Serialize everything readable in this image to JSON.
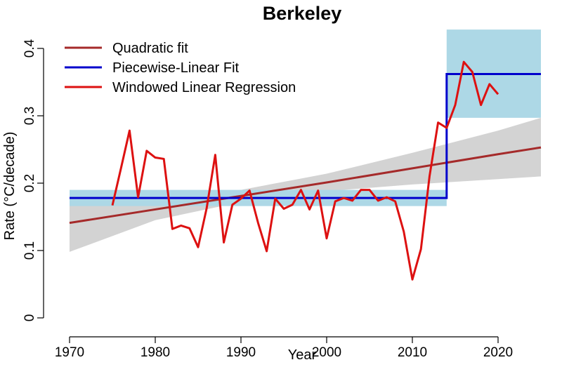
{
  "chart_data": {
    "type": "line",
    "title": "Berkeley",
    "xlabel": "Year",
    "ylabel": "Rate (°C/decade)",
    "xlim": [
      1967,
      2027
    ],
    "ylim": [
      0,
      0.42
    ],
    "xticks": [
      1970,
      1980,
      1990,
      2000,
      2010,
      2020
    ],
    "yticks": [
      0,
      0.1,
      0.2,
      0.3,
      0.4
    ],
    "ytick_labels": [
      "0",
      "0.1",
      "0.2",
      "0.3",
      "0.4"
    ],
    "grid": false,
    "legend_position": "top-left",
    "colors": {
      "quadratic": "#a52a2a",
      "piecewise": "#0000cc",
      "windowed": "#dd1111",
      "quad_band": "#d3d3d3",
      "piece_band": "#add8e6"
    },
    "series": [
      {
        "name": "Quadratic fit",
        "x": [
          1970,
          1980,
          1990,
          2000,
          2010,
          2020,
          2025
        ],
        "y": [
          0.141,
          0.161,
          0.181,
          0.201,
          0.222,
          0.243,
          0.253
        ],
        "band_lower": [
          0.098,
          0.145,
          0.172,
          0.188,
          0.198,
          0.206,
          0.21
        ],
        "band_upper": [
          0.185,
          0.178,
          0.19,
          0.214,
          0.245,
          0.278,
          0.297
        ]
      },
      {
        "name": "Piecewise-Linear Fit",
        "segments": [
          {
            "x": [
              1970,
              2014
            ],
            "y": 0.178,
            "band": [
              0.166,
              0.19
            ]
          },
          {
            "x": [
              2014,
              2025
            ],
            "y": 0.362,
            "band": [
              0.297,
              0.428
            ]
          }
        ]
      },
      {
        "name": "Windowed Linear Regression",
        "x": [
          1975,
          1976,
          1977,
          1978,
          1979,
          1980,
          1981,
          1982,
          1983,
          1984,
          1985,
          1986,
          1987,
          1988,
          1989,
          1990,
          1991,
          1992,
          1993,
          1994,
          1995,
          1996,
          1997,
          1998,
          1999,
          2000,
          2001,
          2002,
          2003,
          2004,
          2005,
          2006,
          2007,
          2008,
          2009,
          2010,
          2011,
          2012,
          2013,
          2014,
          2015,
          2016,
          2017,
          2018,
          2019,
          2020
        ],
        "y": [
          0.167,
          0.222,
          0.278,
          0.179,
          0.248,
          0.238,
          0.236,
          0.132,
          0.137,
          0.133,
          0.105,
          0.163,
          0.242,
          0.112,
          0.168,
          0.177,
          0.189,
          0.141,
          0.099,
          0.177,
          0.162,
          0.168,
          0.19,
          0.161,
          0.189,
          0.118,
          0.173,
          0.178,
          0.174,
          0.19,
          0.19,
          0.174,
          0.179,
          0.173,
          0.128,
          0.057,
          0.102,
          0.21,
          0.29,
          0.282,
          0.316,
          0.38,
          0.365,
          0.316,
          0.347,
          0.332
        ]
      }
    ]
  }
}
